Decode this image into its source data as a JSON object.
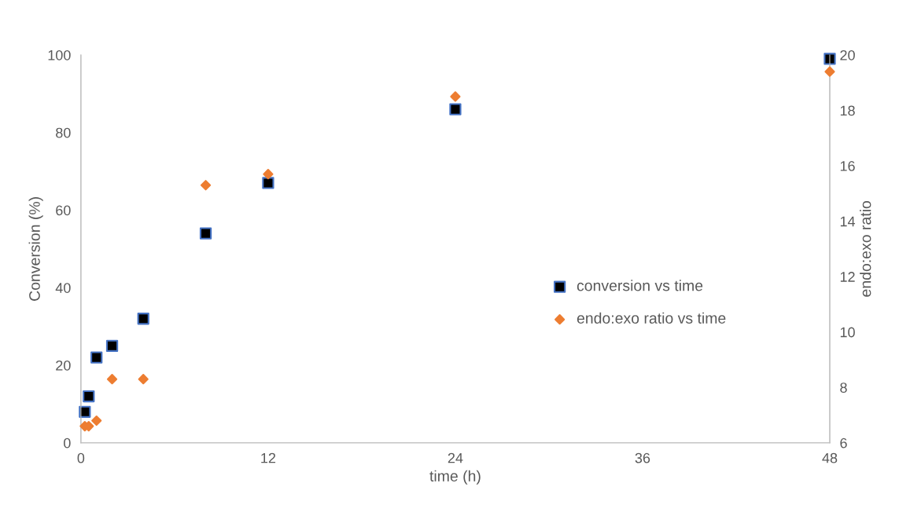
{
  "chart_data": {
    "type": "scatter",
    "xlabel": "time (h)",
    "ylabel": "Conversion (%)",
    "y2label": "endo:exo ratio",
    "xlim": [
      0,
      48
    ],
    "xticks": [
      0,
      12,
      24,
      36,
      48
    ],
    "ylim": [
      0,
      100
    ],
    "yticks": [
      0,
      20,
      40,
      60,
      80,
      100
    ],
    "y2lim": [
      6,
      20
    ],
    "y2ticks": [
      6,
      8,
      10,
      12,
      14,
      16,
      18,
      20
    ],
    "grid": false,
    "legend": "right",
    "series": [
      {
        "name": "conversion vs time",
        "color": "#000000",
        "marker": "square",
        "x": [
          0.25,
          0.5,
          1,
          2,
          4,
          8,
          12,
          24,
          48
        ],
        "values": [
          8,
          12,
          22,
          25,
          32,
          54,
          67,
          86,
          99
        ]
      },
      {
        "name": "endo:exo ratio vs time",
        "color": "#ed7d31",
        "marker": "diamond",
        "axis": "y2",
        "x": [
          0.25,
          0.5,
          1,
          2,
          4,
          8,
          12,
          24,
          48
        ],
        "values": [
          6.6,
          6.6,
          6.8,
          8.3,
          8.3,
          15.3,
          15.7,
          18.5,
          19.4
        ]
      }
    ]
  }
}
